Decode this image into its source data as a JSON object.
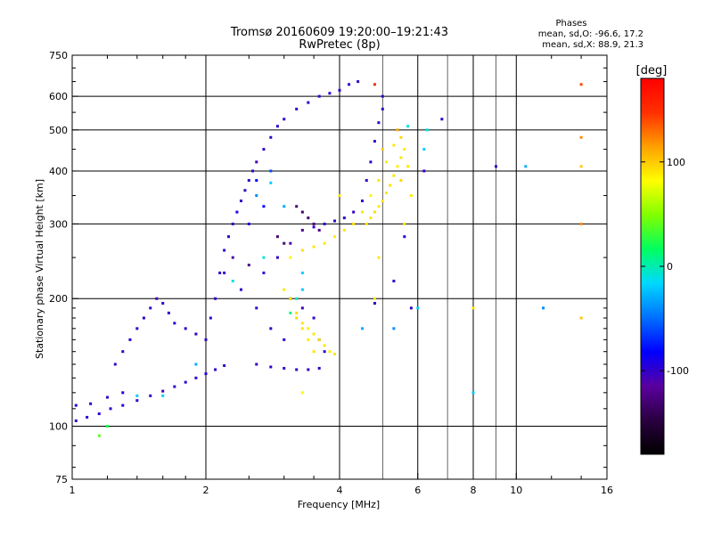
{
  "title_line1": "Tromsø 20160609 19:20:00–19:21:43",
  "title_line2": "RwPretec (8p)",
  "stats": {
    "heading": "Phases",
    "line_o": "mean, sd,O: -96.6, 17.2",
    "line_x": "mean, sd,X:  88.9, 21.3"
  },
  "chart_data": {
    "type": "scatter",
    "xlabel": "Frequency [MHz]",
    "ylabel": "Stationary phase Virtual Height [km]",
    "x_scale": "log2",
    "y_scale": "log",
    "xlim": [
      1,
      16
    ],
    "ylim": [
      75,
      750
    ],
    "x_ticks": [
      1,
      2,
      4,
      6,
      8,
      10,
      16
    ],
    "x_tick_labels": [
      "1",
      "2",
      "4",
      "6",
      "8",
      "10",
      "16"
    ],
    "x_grid_major": [
      2,
      4,
      6,
      8,
      10
    ],
    "x_grid_minor": [
      5,
      7,
      9
    ],
    "y_ticks": [
      75,
      100,
      200,
      300,
      400,
      500,
      600,
      750
    ],
    "y_tick_labels": [
      "75",
      "100",
      "200",
      "300",
      "400",
      "500",
      "600",
      "750"
    ],
    "y_grid": [
      100,
      200,
      300,
      400,
      500,
      600
    ],
    "grid": true,
    "colorbar": {
      "label": "[deg]",
      "range": [
        -180,
        180
      ],
      "ticks": [
        100,
        0,
        -100
      ],
      "tick_labels": [
        "100",
        "0",
        "-100"
      ],
      "colors": [
        "#000000",
        "#2a0040",
        "#5a00a0",
        "#0000ff",
        "#0070ff",
        "#00d8ff",
        "#00ff60",
        "#80ff00",
        "#ffff00",
        "#ffa000",
        "#ff3000",
        "#ff0000"
      ]
    },
    "point_color_value_unit": "phase [deg]",
    "series": [
      {
        "points": [
          [
            1.02,
            103,
            -100
          ],
          [
            1.08,
            105,
            -100
          ],
          [
            1.15,
            107,
            -98
          ],
          [
            1.22,
            110,
            -100
          ],
          [
            1.3,
            112,
            -95
          ],
          [
            1.4,
            115,
            -100
          ],
          [
            1.5,
            118,
            -100
          ],
          [
            1.6,
            121,
            -105
          ],
          [
            1.7,
            124,
            -100
          ],
          [
            1.8,
            127,
            -98
          ],
          [
            1.9,
            130,
            -100
          ],
          [
            2.0,
            133,
            -95
          ],
          [
            2.1,
            136,
            -100
          ],
          [
            2.2,
            139,
            -100
          ],
          [
            1.02,
            112,
            -95
          ],
          [
            1.1,
            113,
            -100
          ],
          [
            1.2,
            117,
            -100
          ],
          [
            1.3,
            120,
            -90
          ],
          [
            1.25,
            140,
            -100
          ],
          [
            1.3,
            150,
            -100
          ],
          [
            1.35,
            160,
            -95
          ],
          [
            1.4,
            170,
            -100
          ],
          [
            1.45,
            180,
            -100
          ],
          [
            1.5,
            190,
            -100
          ],
          [
            1.55,
            200,
            -105
          ],
          [
            1.6,
            195,
            -100
          ],
          [
            1.65,
            185,
            -100
          ],
          [
            1.7,
            175,
            -95
          ],
          [
            1.8,
            170,
            -100
          ],
          [
            1.9,
            165,
            -100
          ],
          [
            2.0,
            160,
            -100
          ],
          [
            2.05,
            180,
            -100
          ],
          [
            2.1,
            200,
            -100
          ],
          [
            2.15,
            230,
            -100
          ],
          [
            2.2,
            260,
            -98
          ],
          [
            2.25,
            280,
            -100
          ],
          [
            2.3,
            300,
            -100
          ],
          [
            2.35,
            320,
            -95
          ],
          [
            2.4,
            340,
            -100
          ],
          [
            2.45,
            360,
            -100
          ],
          [
            2.5,
            380,
            -100
          ],
          [
            2.55,
            400,
            -100
          ],
          [
            2.6,
            420,
            -105
          ],
          [
            2.7,
            450,
            -100
          ],
          [
            2.8,
            480,
            -100
          ],
          [
            2.9,
            510,
            -100
          ],
          [
            3.0,
            530,
            -100
          ],
          [
            3.2,
            560,
            -100
          ],
          [
            3.4,
            580,
            -100
          ],
          [
            3.6,
            600,
            -100
          ],
          [
            3.8,
            610,
            -100
          ],
          [
            4.0,
            620,
            -100
          ],
          [
            4.2,
            640,
            -100
          ],
          [
            4.4,
            650,
            -100
          ],
          [
            2.3,
            250,
            -110
          ],
          [
            2.5,
            240,
            -120
          ],
          [
            2.7,
            230,
            -100
          ],
          [
            2.9,
            250,
            -100
          ],
          [
            3.1,
            270,
            -110
          ],
          [
            3.3,
            290,
            -120
          ],
          [
            3.5,
            295,
            -100
          ],
          [
            3.7,
            300,
            -100
          ],
          [
            3.9,
            305,
            -100
          ],
          [
            4.1,
            310,
            -100
          ],
          [
            4.3,
            320,
            -100
          ],
          [
            4.5,
            340,
            -100
          ],
          [
            4.6,
            380,
            -100
          ],
          [
            4.7,
            420,
            -100
          ],
          [
            4.8,
            470,
            -100
          ],
          [
            4.9,
            520,
            -100
          ],
          [
            5.0,
            560,
            -100
          ],
          [
            5.0,
            600,
            -100
          ],
          [
            2.6,
            140,
            -100
          ],
          [
            2.8,
            138,
            -100
          ],
          [
            3.0,
            137,
            -100
          ],
          [
            3.2,
            136,
            -100
          ],
          [
            3.4,
            136,
            -100
          ],
          [
            3.6,
            137,
            -100
          ],
          [
            3.2,
            330,
            -130
          ],
          [
            3.3,
            320,
            -130
          ],
          [
            3.4,
            310,
            -130
          ],
          [
            3.5,
            300,
            -125
          ],
          [
            3.6,
            290,
            -125
          ],
          [
            2.9,
            280,
            -130
          ],
          [
            3.0,
            270,
            -130
          ],
          [
            2.5,
            300,
            -90
          ],
          [
            2.7,
            330,
            -80
          ],
          [
            2.6,
            380,
            -80
          ],
          [
            2.8,
            400,
            -60
          ],
          [
            3.1,
            200,
            -110
          ],
          [
            3.3,
            190,
            -105
          ],
          [
            3.0,
            160,
            -95
          ],
          [
            2.8,
            170,
            -100
          ],
          [
            2.6,
            190,
            -100
          ],
          [
            2.4,
            210,
            -100
          ],
          [
            2.2,
            230,
            -100
          ],
          [
            3.5,
            180,
            -100
          ],
          [
            3.6,
            160,
            -100
          ],
          [
            3.7,
            150,
            -100
          ],
          [
            4.8,
            195,
            -100
          ],
          [
            5.3,
            220,
            -100
          ],
          [
            5.8,
            190,
            -100
          ],
          [
            6.2,
            400,
            -100
          ],
          [
            6.8,
            530,
            -100
          ],
          [
            9.0,
            410,
            -100
          ],
          [
            5.6,
            280,
            -95
          ]
        ]
      },
      {
        "points": [
          [
            4.6,
            300,
            90
          ],
          [
            4.7,
            310,
            90
          ],
          [
            4.8,
            320,
            92
          ],
          [
            4.9,
            330,
            88
          ],
          [
            5.0,
            340,
            90
          ],
          [
            5.1,
            355,
            90
          ],
          [
            5.2,
            370,
            92
          ],
          [
            5.3,
            390,
            90
          ],
          [
            5.4,
            410,
            88
          ],
          [
            5.5,
            430,
            90
          ],
          [
            5.6,
            450,
            90
          ],
          [
            5.5,
            480,
            95
          ],
          [
            5.3,
            460,
            90
          ],
          [
            5.1,
            420,
            88
          ],
          [
            4.9,
            380,
            90
          ],
          [
            4.7,
            350,
            85
          ],
          [
            4.5,
            320,
            90
          ],
          [
            4.3,
            300,
            92
          ],
          [
            4.1,
            290,
            90
          ],
          [
            3.9,
            280,
            88
          ],
          [
            3.7,
            270,
            90
          ],
          [
            3.5,
            265,
            90
          ],
          [
            3.3,
            260,
            92
          ],
          [
            3.1,
            250,
            85
          ],
          [
            3.2,
            180,
            95
          ],
          [
            3.3,
            175,
            90
          ],
          [
            3.4,
            170,
            88
          ],
          [
            3.5,
            165,
            90
          ],
          [
            3.6,
            160,
            92
          ],
          [
            3.7,
            155,
            90
          ],
          [
            3.8,
            150,
            88
          ],
          [
            3.9,
            148,
            90
          ],
          [
            3.5,
            150,
            90
          ],
          [
            3.4,
            160,
            88
          ],
          [
            3.3,
            170,
            90
          ],
          [
            3.2,
            185,
            95
          ],
          [
            3.1,
            200,
            90
          ],
          [
            3.0,
            210,
            90
          ],
          [
            4.8,
            200,
            90
          ],
          [
            5.0,
            450,
            100
          ],
          [
            5.5,
            380,
            95
          ],
          [
            4.9,
            250,
            90
          ],
          [
            5.4,
            500,
            110
          ],
          [
            4.8,
            640,
            150
          ],
          [
            14.0,
            640,
            140
          ],
          [
            14.0,
            480,
            120
          ],
          [
            14.0,
            410,
            100
          ],
          [
            14.0,
            300,
            120
          ],
          [
            14.0,
            180,
            100
          ],
          [
            8.0,
            190,
            90
          ],
          [
            3.3,
            120,
            85
          ],
          [
            4.0,
            350,
            90
          ],
          [
            5.6,
            300,
            90
          ],
          [
            5.8,
            350,
            88
          ],
          [
            5.7,
            410,
            90
          ]
        ]
      },
      {
        "points": [
          [
            3.1,
            185,
            10
          ],
          [
            3.2,
            200,
            0
          ],
          [
            3.3,
            210,
            -20
          ],
          [
            2.7,
            250,
            -10
          ],
          [
            2.6,
            350,
            -40
          ],
          [
            2.8,
            375,
            -20
          ],
          [
            3.0,
            330,
            -30
          ],
          [
            6.3,
            500,
            -10
          ],
          [
            6.2,
            450,
            -20
          ],
          [
            8.0,
            120,
            -20
          ],
          [
            10.5,
            410,
            -30
          ],
          [
            11.5,
            190,
            -40
          ],
          [
            1.15,
            95,
            40
          ],
          [
            1.2,
            100,
            20
          ],
          [
            1.4,
            118,
            -20
          ],
          [
            1.6,
            118,
            -20
          ],
          [
            1.9,
            140,
            -30
          ],
          [
            2.3,
            220,
            -10
          ],
          [
            4.5,
            170,
            -30
          ],
          [
            5.3,
            170,
            -40
          ],
          [
            3.3,
            230,
            -20
          ],
          [
            6.0,
            190,
            -20
          ],
          [
            5.7,
            510,
            -10
          ]
        ]
      }
    ]
  }
}
